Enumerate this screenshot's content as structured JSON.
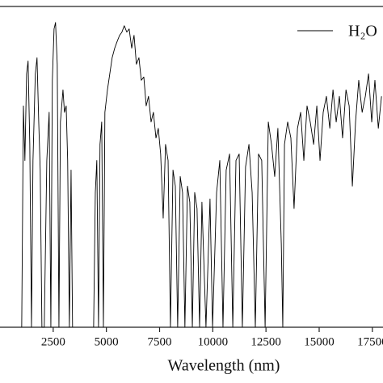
{
  "chart_data": {
    "type": "line",
    "xlabel": "Wavelength (nm)",
    "xlim": [
      0,
      18000
    ],
    "ylim": [
      0,
      1
    ],
    "xticks": [
      2500,
      5000,
      7500,
      10000,
      12500,
      15000,
      17500
    ],
    "legend": "top-right",
    "x": [
      1020,
      1100,
      1170,
      1250,
      1320,
      1400,
      1480,
      1550,
      1660,
      1740,
      1820,
      1890,
      1970,
      2080,
      2200,
      2310,
      2390,
      2460,
      2540,
      2610,
      2690,
      2770,
      2840,
      2960,
      3030,
      3110,
      3180,
      3260,
      3340,
      3410,
      4000,
      4400,
      4480,
      4550,
      4630,
      4700,
      4780,
      4860,
      4930,
      5050,
      5160,
      5270,
      5390,
      5500,
      5620,
      5730,
      5840,
      5960,
      6070,
      6190,
      6300,
      6410,
      6530,
      6640,
      6760,
      6870,
      6980,
      7100,
      7210,
      7330,
      7440,
      7550,
      7670,
      7780,
      7900,
      8010,
      8130,
      8240,
      8350,
      8470,
      8580,
      8690,
      8810,
      8920,
      9040,
      9150,
      9260,
      9380,
      9490,
      9680,
      9870,
      9990,
      10180,
      10330,
      10480,
      10630,
      10790,
      10940,
      11090,
      11240,
      11390,
      11540,
      11700,
      11850,
      12000,
      12150,
      12300,
      12460,
      12610,
      12760,
      12910,
      13060,
      13220,
      13290,
      13370,
      13520,
      13670,
      13820,
      13980,
      14130,
      14280,
      14430,
      14580,
      14740,
      14890,
      15040,
      15190,
      15340,
      15500,
      15650,
      15800,
      15950,
      16100,
      16260,
      16410,
      16560,
      16710,
      16860,
      17020,
      17170,
      17320,
      17470,
      17620,
      17780,
      17930
    ],
    "series": [
      {
        "name": "H₂O",
        "color": "#000000",
        "values": [
          0,
          0.69,
          0.52,
          0.79,
          0.83,
          0.57,
          0,
          0.52,
          0.79,
          0.84,
          0.64,
          0.49,
          0,
          0,
          0.52,
          0.67,
          0,
          0.77,
          0.93,
          0.95,
          0.82,
          0,
          0.64,
          0.74,
          0.67,
          0.69,
          0.52,
          0,
          0.49,
          0,
          null,
          0,
          0.42,
          0.52,
          0,
          0.57,
          0.64,
          0,
          0.67,
          0.74,
          0.79,
          0.84,
          0.87,
          0.89,
          0.91,
          0.92,
          0.94,
          0.92,
          0.93,
          0.87,
          0.91,
          0.82,
          0.84,
          0.77,
          0.78,
          0.69,
          0.72,
          0.64,
          0.67,
          0.59,
          0.62,
          0.54,
          0.34,
          0.57,
          0.52,
          0,
          0.49,
          0.44,
          0,
          0.47,
          0.42,
          0,
          0.44,
          0.39,
          0,
          0.42,
          0.37,
          0,
          0.39,
          0,
          0.4,
          0,
          0.42,
          0.52,
          0,
          0.49,
          0.54,
          0,
          0.52,
          0.54,
          0,
          0.5,
          0.57,
          0.42,
          0,
          0.54,
          0.52,
          0,
          0.64,
          0.57,
          0.47,
          0.62,
          0.26,
          0,
          0.57,
          0.64,
          0.59,
          0.37,
          0.62,
          0.67,
          0.52,
          0.69,
          0.64,
          0.57,
          0.69,
          0.52,
          0.67,
          0.72,
          0.62,
          0.74,
          0.64,
          0.72,
          0.59,
          0.74,
          0.69,
          0.44,
          0.64,
          0.77,
          0.67,
          0.72,
          0.79,
          0.64,
          0.77,
          0.62,
          0.72
        ]
      }
    ]
  }
}
